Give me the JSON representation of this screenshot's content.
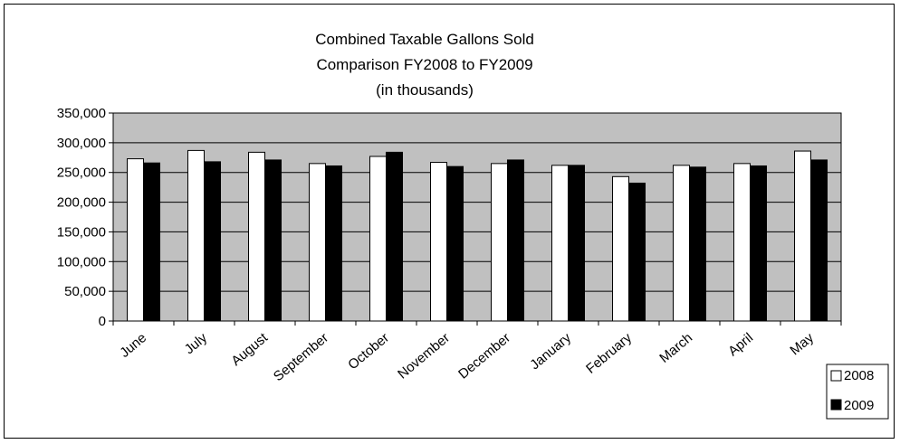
{
  "chart_data": {
    "type": "bar",
    "title_lines": [
      "Combined Taxable Gallons Sold",
      "Comparison FY2008 to FY2009",
      "(in thousands)"
    ],
    "categories": [
      "June",
      "July",
      "August",
      "September",
      "October",
      "November",
      "December",
      "January",
      "February",
      "March",
      "April",
      "May"
    ],
    "series": [
      {
        "name": "2008",
        "color": "#ffffff",
        "values": [
          273000,
          287000,
          284000,
          265000,
          277000,
          267000,
          265000,
          262000,
          243000,
          262000,
          265000,
          286000
        ]
      },
      {
        "name": "2009",
        "color": "#000000",
        "values": [
          266000,
          268000,
          271000,
          261000,
          284000,
          260000,
          271000,
          262000,
          232000,
          259000,
          261000,
          271000
        ]
      }
    ],
    "y_ticks": [
      "0",
      "50,000",
      "100,000",
      "150,000",
      "200,000",
      "250,000",
      "300,000",
      "350,000"
    ],
    "ylim": [
      0,
      350000
    ],
    "y_step": 50000,
    "plot_background": "#c0c0c0",
    "grid": true,
    "legend_position": "bottom-right"
  }
}
